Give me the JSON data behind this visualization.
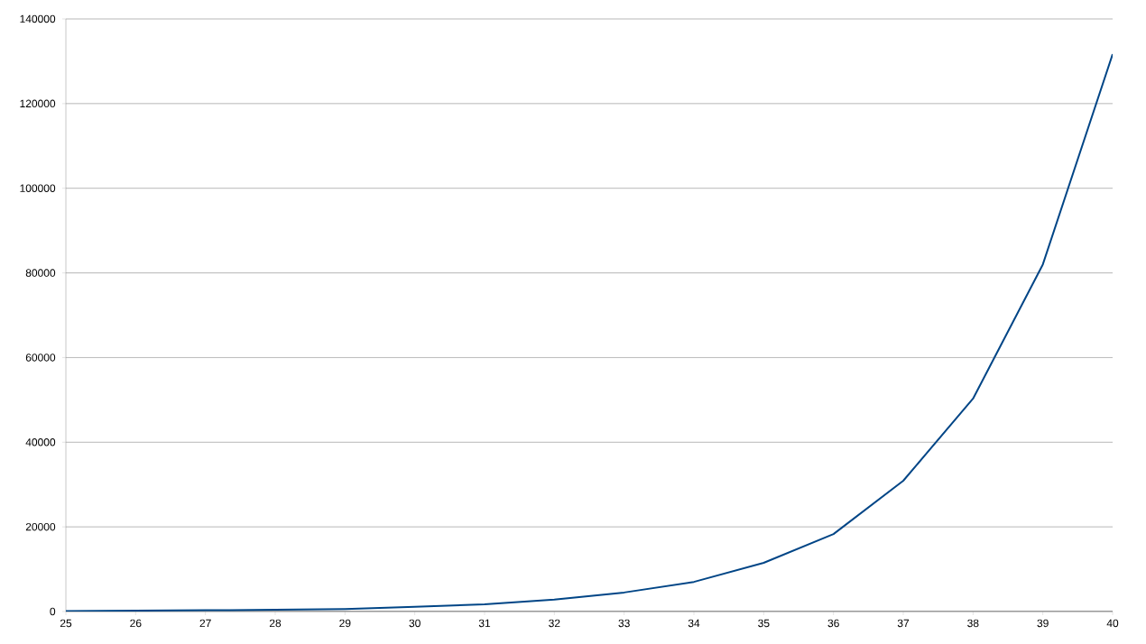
{
  "chart_data": {
    "type": "line",
    "x": [
      25,
      26,
      27,
      28,
      29,
      30,
      31,
      32,
      33,
      34,
      35,
      36,
      37,
      38,
      39,
      40
    ],
    "series": [
      {
        "color": "#004586",
        "values": [
          100,
          200,
          300,
          400,
          600,
          1100,
          1700,
          2800,
          4500,
          7000,
          11500,
          18300,
          30900,
          50300,
          82000,
          131700
        ]
      }
    ],
    "xlim": [
      25,
      40
    ],
    "xticks": [
      25,
      26,
      27,
      28,
      29,
      30,
      31,
      32,
      33,
      34,
      35,
      36,
      37,
      38,
      39,
      40
    ],
    "ylim": [
      0,
      140000
    ],
    "yticks": [
      0,
      20000,
      40000,
      60000,
      80000,
      100000,
      120000,
      140000
    ],
    "grid": "y",
    "marker": "none",
    "line_style": "solid"
  }
}
